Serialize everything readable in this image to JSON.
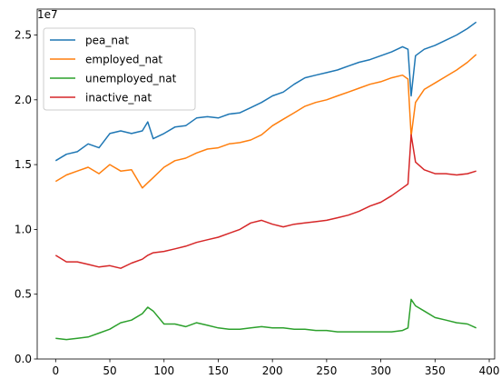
{
  "chart_data": {
    "type": "line",
    "title": "",
    "xlabel": "",
    "ylabel": "",
    "y_offset_label": "1e7",
    "xlim": [
      -17,
      405
    ],
    "ylim": [
      0,
      27000000
    ],
    "x_ticks": [
      0,
      50,
      100,
      150,
      200,
      250,
      300,
      350,
      400
    ],
    "x_tick_labels": [
      "0",
      "50",
      "100",
      "150",
      "200",
      "250",
      "300",
      "350",
      "400"
    ],
    "y_ticks": [
      0,
      5000000,
      10000000,
      15000000,
      20000000,
      25000000
    ],
    "y_tick_labels": [
      "0.0",
      "0.5",
      "1.0",
      "1.5",
      "2.0",
      "2.5"
    ],
    "grid": false,
    "legend_position": "top-left",
    "x": [
      0,
      10,
      20,
      30,
      40,
      50,
      60,
      70,
      80,
      85,
      90,
      100,
      110,
      120,
      130,
      140,
      150,
      160,
      170,
      180,
      190,
      200,
      210,
      220,
      230,
      240,
      250,
      260,
      270,
      280,
      290,
      300,
      310,
      320,
      325,
      328,
      332,
      340,
      350,
      360,
      370,
      380,
      388
    ],
    "series": [
      {
        "name": "pea_nat",
        "color": "#1f77b4",
        "values": [
          15300000,
          15800000,
          16000000,
          16600000,
          16300000,
          17400000,
          17600000,
          17400000,
          17600000,
          18300000,
          17000000,
          17400000,
          17900000,
          18000000,
          18600000,
          18700000,
          18600000,
          18900000,
          19000000,
          19400000,
          19800000,
          20300000,
          20600000,
          21200000,
          21700000,
          21900000,
          22100000,
          22300000,
          22600000,
          22900000,
          23100000,
          23400000,
          23700000,
          24100000,
          23900000,
          20300000,
          23400000,
          23900000,
          24200000,
          24600000,
          25000000,
          25500000,
          26000000
        ]
      },
      {
        "name": "employed_nat",
        "color": "#ff7f0e",
        "values": [
          13700000,
          14200000,
          14500000,
          14800000,
          14300000,
          15000000,
          14500000,
          14600000,
          13200000,
          13600000,
          14000000,
          14800000,
          15300000,
          15500000,
          15900000,
          16200000,
          16300000,
          16600000,
          16700000,
          16900000,
          17300000,
          18000000,
          18500000,
          19000000,
          19500000,
          19800000,
          20000000,
          20300000,
          20600000,
          20900000,
          21200000,
          21400000,
          21700000,
          21900000,
          21600000,
          17200000,
          19800000,
          20800000,
          21300000,
          21800000,
          22300000,
          22900000,
          23500000
        ]
      },
      {
        "name": "unemployed_nat",
        "color": "#2ca02c",
        "values": [
          1600000,
          1500000,
          1600000,
          1700000,
          2000000,
          2300000,
          2800000,
          3000000,
          3500000,
          4000000,
          3700000,
          2700000,
          2700000,
          2500000,
          2800000,
          2600000,
          2400000,
          2300000,
          2300000,
          2400000,
          2500000,
          2400000,
          2400000,
          2300000,
          2300000,
          2200000,
          2200000,
          2100000,
          2100000,
          2100000,
          2100000,
          2100000,
          2100000,
          2200000,
          2400000,
          4600000,
          4100000,
          3700000,
          3200000,
          3000000,
          2800000,
          2700000,
          2400000
        ]
      },
      {
        "name": "inactive_nat",
        "color": "#d62728",
        "values": [
          8000000,
          7500000,
          7500000,
          7300000,
          7100000,
          7200000,
          7000000,
          7400000,
          7700000,
          8000000,
          8200000,
          8300000,
          8500000,
          8700000,
          9000000,
          9200000,
          9400000,
          9700000,
          10000000,
          10500000,
          10700000,
          10400000,
          10200000,
          10400000,
          10500000,
          10600000,
          10700000,
          10900000,
          11100000,
          11400000,
          11800000,
          12100000,
          12600000,
          13200000,
          13500000,
          17300000,
          15200000,
          14600000,
          14300000,
          14300000,
          14200000,
          14300000,
          14500000
        ]
      }
    ]
  }
}
